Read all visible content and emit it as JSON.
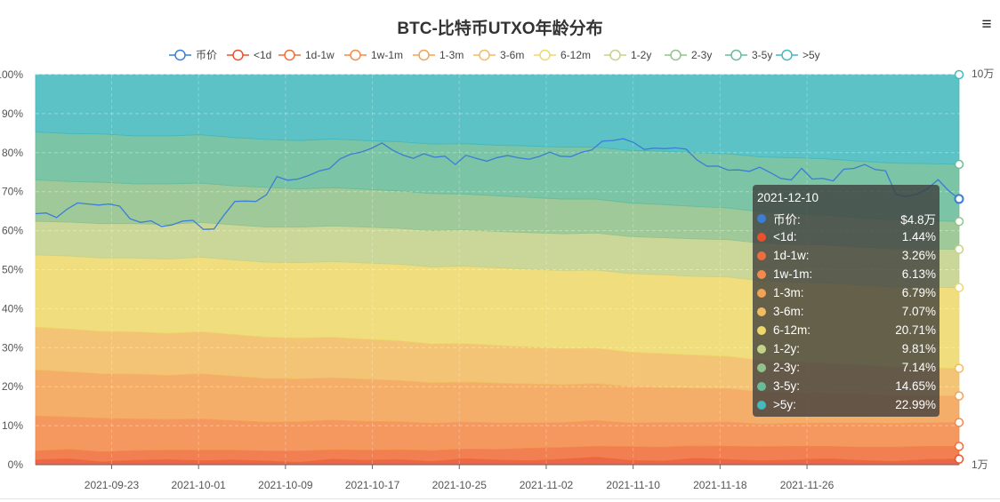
{
  "title": "BTC-比特币UTXO年龄分布",
  "toolbar": {
    "menu_glyph": "≡"
  },
  "chart_data": {
    "type": "area",
    "stacked": true,
    "title": "BTC-比特币UTXO年龄分布",
    "x_ticks": [
      "2021-09-23",
      "2021-10-01",
      "2021-10-09",
      "2021-10-17",
      "2021-10-25",
      "2021-11-02",
      "2021-11-10",
      "2021-11-18",
      "2021-11-26"
    ],
    "x_range": [
      "2021-09-16",
      "2021-12-10"
    ],
    "y_left_ticks": [
      "0%",
      "10%",
      "20%",
      "30%",
      "40%",
      "50%",
      "60%",
      "70%",
      "80%",
      "90%",
      "100%"
    ],
    "ylim": [
      0,
      100
    ],
    "y_right_ticks": [
      "1万",
      "10万"
    ],
    "y_right_scale": "log",
    "y_right_range": [
      10000,
      100000
    ],
    "legend_position": "top",
    "grid": true,
    "series": [
      {
        "name": "<1d",
        "color": "#e9512e",
        "values": [
          1.2,
          1.5,
          0.7,
          1.1,
          1.3,
          1.0,
          1.2,
          0.9,
          0.6,
          1.4,
          1.1,
          1.3,
          0.8,
          1.5,
          1.2,
          1.0,
          1.4,
          1.9,
          1.1,
          0.9,
          1.6,
          1.3,
          1.0,
          1.2,
          1.5,
          1.1,
          0.8,
          1.3,
          1.44
        ]
      },
      {
        "name": "1d-1w",
        "color": "#ef6d3a",
        "values": [
          2.3,
          2.4,
          2.6,
          2.5,
          2.4,
          2.7,
          2.5,
          2.6,
          2.9,
          2.4,
          2.6,
          2.5,
          2.8,
          2.5,
          2.7,
          3.2,
          3.0,
          2.8,
          3.5,
          3.6,
          3.2,
          3.4,
          3.6,
          3.5,
          3.2,
          3.4,
          3.7,
          3.4,
          3.26
        ]
      },
      {
        "name": "1w-1m",
        "color": "#f28a4a",
        "values": [
          9.0,
          8.3,
          8.6,
          8.1,
          7.9,
          8.0,
          7.6,
          7.4,
          7.5,
          7.6,
          7.4,
          7.2,
          7.0,
          6.9,
          6.8,
          6.5,
          6.4,
          6.6,
          6.1,
          6.3,
          6.0,
          6.2,
          5.8,
          5.9,
          6.0,
          6.2,
          6.1,
          6.0,
          6.13
        ]
      },
      {
        "name": "1-3m",
        "color": "#f4a255",
        "values": [
          11.8,
          11.6,
          11.4,
          11.5,
          11.3,
          11.6,
          11.4,
          11.2,
          11.0,
          10.9,
          10.8,
          10.6,
          10.4,
          10.3,
          10.2,
          10.0,
          9.7,
          9.5,
          9.3,
          9.0,
          8.8,
          8.6,
          8.3,
          7.9,
          7.7,
          7.4,
          7.1,
          7.0,
          6.79
        ]
      },
      {
        "name": "3-6m",
        "color": "#f1bc62",
        "values": [
          11.0,
          11.0,
          10.9,
          10.9,
          10.8,
          10.8,
          10.7,
          10.6,
          10.5,
          10.4,
          10.3,
          10.2,
          10.0,
          9.9,
          9.7,
          9.5,
          9.3,
          9.1,
          8.9,
          8.7,
          8.5,
          8.3,
          8.1,
          7.9,
          7.7,
          7.5,
          7.3,
          7.2,
          7.07
        ]
      },
      {
        "name": "6-12m",
        "color": "#eed86b",
        "values": [
          18.5,
          18.7,
          18.8,
          18.9,
          19.0,
          19.1,
          19.1,
          19.2,
          19.3,
          19.4,
          19.5,
          19.6,
          19.7,
          19.8,
          19.9,
          19.9,
          20.0,
          20.0,
          20.1,
          20.2,
          20.2,
          20.3,
          20.4,
          20.4,
          20.5,
          20.5,
          20.6,
          20.6,
          20.71
        ]
      },
      {
        "name": "1-2y",
        "color": "#c4d28a",
        "values": [
          8.6,
          8.7,
          8.8,
          8.8,
          8.9,
          8.9,
          9.0,
          9.0,
          9.1,
          9.1,
          9.2,
          9.2,
          9.3,
          9.3,
          9.3,
          9.4,
          9.4,
          9.5,
          9.5,
          9.5,
          9.6,
          9.6,
          9.6,
          9.7,
          9.7,
          9.7,
          9.8,
          9.8,
          9.81
        ]
      },
      {
        "name": "2-3y",
        "color": "#93c28b",
        "values": [
          10.6,
          10.4,
          10.6,
          10.2,
          10.4,
          10.1,
          10.0,
          10.2,
          9.8,
          9.8,
          9.7,
          9.6,
          9.5,
          9.2,
          9.1,
          9.0,
          8.9,
          8.7,
          8.6,
          8.5,
          8.3,
          8.1,
          8.0,
          7.9,
          7.7,
          7.5,
          7.4,
          7.3,
          7.14
        ]
      },
      {
        "name": "3-5y",
        "color": "#69bc9a",
        "values": [
          12.3,
          12.3,
          12.4,
          12.3,
          12.3,
          12.4,
          12.4,
          12.3,
          12.4,
          12.5,
          12.5,
          12.6,
          12.7,
          12.9,
          13.0,
          13.2,
          13.3,
          13.3,
          13.5,
          13.7,
          13.8,
          13.9,
          14.1,
          14.3,
          14.4,
          14.5,
          14.5,
          14.6,
          14.65
        ]
      },
      {
        "name": ">5y",
        "color": "#45b9bd",
        "values": [
          22.9,
          22.9,
          22.8,
          22.9,
          22.8,
          22.9,
          22.9,
          22.9,
          22.9,
          23.0,
          22.9,
          23.0,
          23.0,
          23.0,
          23.1,
          22.9,
          23.0,
          22.9,
          23.0,
          23.0,
          23.0,
          23.0,
          23.0,
          23.0,
          23.0,
          23.0,
          23.0,
          23.0,
          22.99
        ]
      }
    ],
    "price_series": {
      "name": "币价",
      "color": "#3a7ed6",
      "axis": "right",
      "values": [
        44000,
        44200,
        43000,
        45200,
        46900,
        46600,
        46300,
        46600,
        46000,
        42700,
        41800,
        42200,
        40800,
        41200,
        42100,
        42300,
        40100,
        40200,
        43800,
        47300,
        47400,
        47300,
        49200,
        54800,
        53600,
        54000,
        55100,
        56600,
        57400,
        60800,
        62500,
        63300,
        64700,
        66800,
        64100,
        62200,
        61000,
        62700,
        61400,
        61800,
        58800,
        62100,
        61000,
        60000,
        61300,
        62000,
        61200,
        60700,
        61700,
        63300,
        61800,
        61600,
        63200,
        64100,
        67500,
        67800,
        68500,
        67000,
        64300,
        64800,
        64600,
        64900,
        64400,
        60500,
        58200,
        58300,
        56900,
        57000,
        56500,
        57900,
        56100,
        54200,
        53700,
        57500,
        54000,
        54200,
        53400,
        57200,
        57500,
        58800,
        57100,
        56700,
        49300,
        48700,
        49400,
        51000,
        53800,
        50400,
        48000
      ]
    },
    "legend": [
      "币价",
      "<1d",
      "1d-1w",
      "1w-1m",
      "1-3m",
      "3-6m",
      "6-12m",
      "1-2y",
      "2-3y",
      "3-5y",
      ">5y"
    ]
  },
  "tooltip": {
    "date": "2021-12-10",
    "rows": [
      {
        "label": "币价:",
        "value": "$4.8万",
        "color": "#3a7ed6"
      },
      {
        "label": "<1d:",
        "value": "1.44%",
        "color": "#e9512e"
      },
      {
        "label": "1d-1w:",
        "value": "3.26%",
        "color": "#ef6d3a"
      },
      {
        "label": "1w-1m:",
        "value": "6.13%",
        "color": "#f28a4a"
      },
      {
        "label": "1-3m:",
        "value": "6.79%",
        "color": "#f4a255"
      },
      {
        "label": "3-6m:",
        "value": "7.07%",
        "color": "#f1bc62"
      },
      {
        "label": "6-12m:",
        "value": "20.71%",
        "color": "#eed86b"
      },
      {
        "label": "1-2y:",
        "value": "9.81%",
        "color": "#c4d28a"
      },
      {
        "label": "2-3y:",
        "value": "7.14%",
        "color": "#93c28b"
      },
      {
        "label": "3-5y:",
        "value": "14.65%",
        "color": "#69bc9a"
      },
      {
        "label": ">5y:",
        "value": "22.99%",
        "color": "#45b9bd"
      }
    ]
  }
}
